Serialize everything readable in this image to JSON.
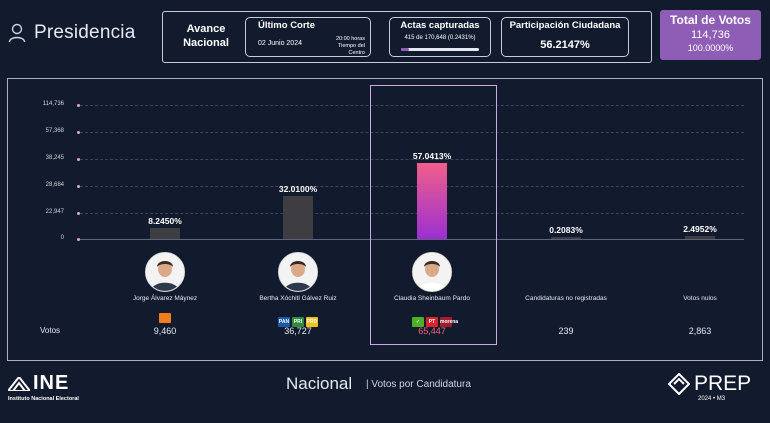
{
  "header": {
    "title": "Presidencia",
    "avance_label_1": "Avance",
    "avance_label_2": "Nacional",
    "ultimo_corte_title": "Último Corte",
    "ultimo_corte_date": "02 Junio 2024",
    "ultimo_corte_time_1": "20:00 horas",
    "ultimo_corte_time_2": "Tiempo del Centro",
    "actas_title": "Actas capturadas",
    "actas_value": "415 de 170,648 (0.2431%)",
    "actas_progress": 0.002431,
    "participacion_title": "Participación Ciudadana",
    "participacion_value": "56.2147%",
    "total_title": "Total de Votos",
    "total_value": "114,736",
    "total_pct": "100.0000%",
    "total_color": "#8e5eb6"
  },
  "chart_data": {
    "type": "bar",
    "y_ticks": [
      "114,736",
      "57,368",
      "38,245",
      "28,684",
      "22,947",
      "0"
    ],
    "categories": [
      "Jorge Álvarez Máynez",
      "Bertha Xóchitl Gálvez Ruiz",
      "Claudia Sheinbaum Pardo",
      "Candidaturas no registradas",
      "Votos nulos"
    ],
    "values": [
      9460,
      36727,
      65447,
      239,
      2863
    ],
    "percent_labels": [
      "8.2450%",
      "32.0100%",
      "57.0413%",
      "0.2083%",
      "2.4952%"
    ],
    "vote_labels": [
      "9,460",
      "36,727",
      "65,447",
      "239",
      "2,863"
    ],
    "votes_row_label": "Votos",
    "highlight_index": 2,
    "bar_color": "#3d3d42",
    "highlight_gradient": [
      "#f05f8a",
      "#9c2fd2"
    ],
    "highlight_vote_color": "#f06377"
  },
  "parties": {
    "c0": [
      {
        "icon": "mc-icon",
        "color": "#f07c1c",
        "text": ""
      }
    ],
    "c1": [
      {
        "icon": "pan-icon",
        "color": "#1b58a8",
        "text": "PAN"
      },
      {
        "icon": "pri-icon",
        "color": "#2f8a3e",
        "text": "PRI"
      },
      {
        "icon": "prd-icon",
        "color": "#f2c319",
        "text": "PRD"
      }
    ],
    "c2": [
      {
        "icon": "pvem-icon",
        "color": "#4caf27",
        "text": "✓"
      },
      {
        "icon": "pt-icon",
        "color": "#d8232a",
        "text": "PT"
      },
      {
        "icon": "morena-icon",
        "color": "#a01d2b",
        "text": "morena"
      }
    ]
  },
  "footer": {
    "logo_text": "INE",
    "logo_sub": "Instituto Nacional Electoral",
    "title": "Nacional",
    "subtitle": "| Votos por Candidatura",
    "prep_text": "PREP",
    "prep_sub": "2024 • M3"
  }
}
